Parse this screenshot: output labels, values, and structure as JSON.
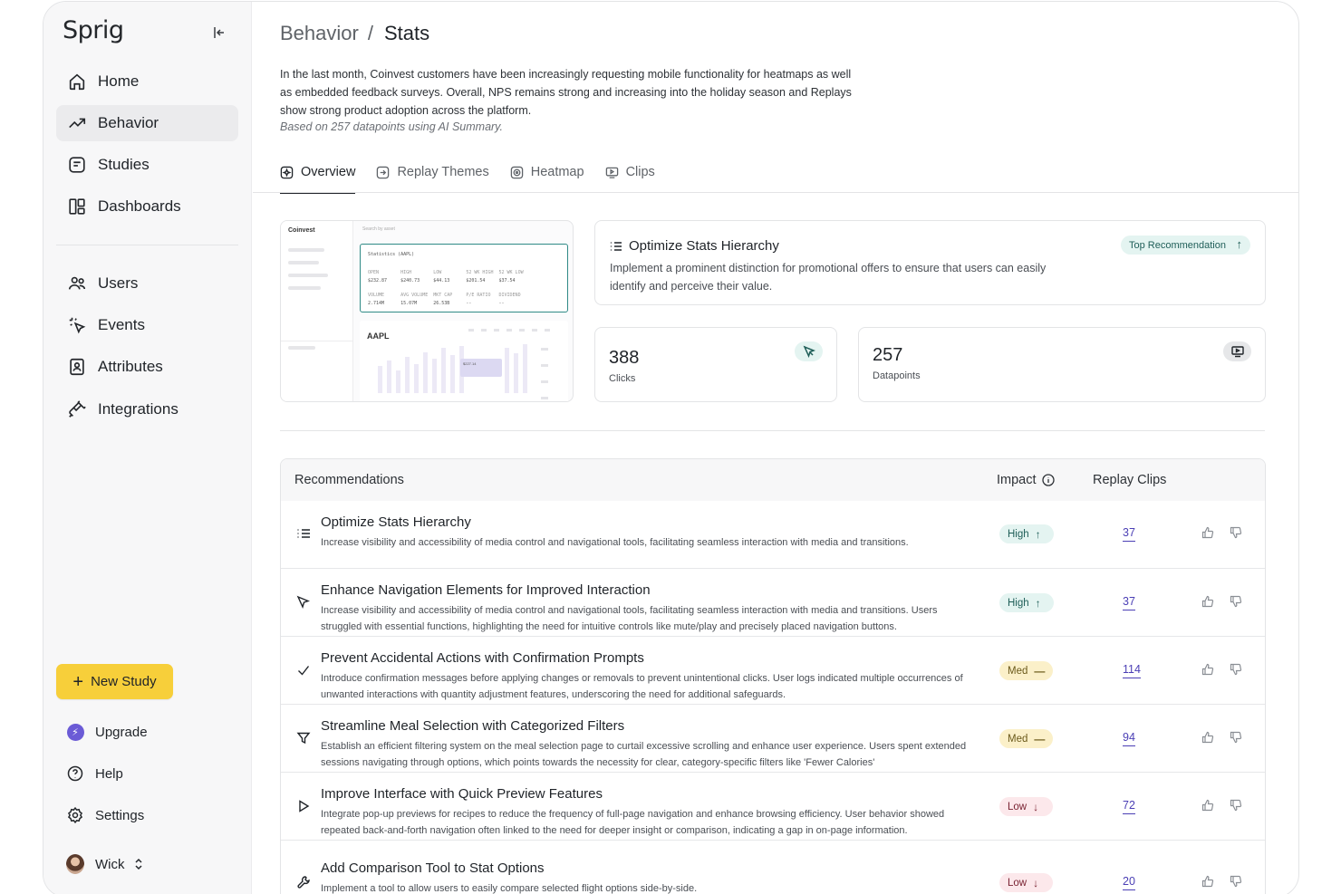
{
  "sidebar": {
    "logo": "Sprig",
    "nav": [
      {
        "label": "Home",
        "icon": "home-icon"
      },
      {
        "label": "Behavior",
        "icon": "trend-up-icon",
        "active": true
      },
      {
        "label": "Studies",
        "icon": "studies-icon"
      },
      {
        "label": "Dashboards",
        "icon": "dashboard-icon"
      }
    ],
    "nav2": [
      {
        "label": "Users",
        "icon": "users-icon"
      },
      {
        "label": "Events",
        "icon": "events-icon"
      },
      {
        "label": "Attributes",
        "icon": "attributes-icon"
      },
      {
        "label": "Integrations",
        "icon": "plug-icon"
      }
    ],
    "new_study": "New Study",
    "upgrade": "Upgrade",
    "help": "Help",
    "settings": "Settings",
    "user": "Wick"
  },
  "header": {
    "crumb_parent": "Behavior",
    "crumb_current": "Stats",
    "summary": "In the last month, Coinvest customers have been increasingly requesting mobile functionality for heatmaps as well as embedded feedback surveys. Overall, NPS remains strong and increasing into the holiday season and Replays show strong product adoption across the platform.",
    "summary_note": "Based on 257 datapoints using AI Summary."
  },
  "tabs": [
    {
      "label": "Overview",
      "active": true
    },
    {
      "label": "Replay Themes"
    },
    {
      "label": "Heatmap"
    },
    {
      "label": "Clips"
    }
  ],
  "preview": {
    "brand": "Coinvest",
    "search": "Search by asset",
    "card_title": "Statistics (AAPL)",
    "row1": "OPEN        HIGH        LOW         52 WK HIGH  52 WK LOW",
    "row2": "$232.87     $240.73     $44.13      $201.54     $37.54",
    "row3": "VOLUME      AVG VOLUME  MKT CAP     P/E RATIO   DIVIDEND",
    "row4": "2.714M      15.07M      26.53B      --          --",
    "chart_title": "AAPL",
    "tip": "$227.14"
  },
  "top_rec": {
    "title": "Optimize Stats Hierarchy",
    "badge": "Top Recommendation",
    "desc": "Implement a prominent distinction for promotional offers to ensure that users can easily identify and perceive their value."
  },
  "stats": [
    {
      "value": "388",
      "label": "Clicks"
    },
    {
      "value": "257",
      "label": "Datapoints"
    }
  ],
  "table": {
    "col_rec": "Recommendations",
    "col_impact": "Impact",
    "col_clips": "Replay Clips",
    "rows": [
      {
        "title": "Optimize Stats Hierarchy",
        "desc": "Increase visibility and accessibility of media control and navigational tools, facilitating seamless interaction with media and transitions.",
        "impact": "High",
        "clips": "37",
        "icon": "list-icon"
      },
      {
        "title": "Enhance Navigation Elements for Improved Interaction",
        "desc": "Increase visibility and accessibility of media control and navigational tools, facilitating seamless interaction with media and transitions. Users struggled with essential functions, highlighting the need for intuitive controls like mute/play and precisely placed navigation buttons.",
        "impact": "High",
        "clips": "37",
        "icon": "cursor-icon"
      },
      {
        "title": "Prevent Accidental Actions with Confirmation Prompts",
        "desc": "Introduce confirmation messages before applying changes or removals to prevent unintentional clicks. User logs indicated multiple occurrences of unwanted interactions with quantity adjustment features, underscoring the need for additional safeguards.",
        "impact": "Med",
        "clips": "114",
        "icon": "check-icon"
      },
      {
        "title": "Streamline Meal Selection with Categorized Filters",
        "desc": "Establish an efficient filtering system on the meal selection page to curtail excessive scrolling and enhance user experience. Users spent extended sessions navigating through options, which points towards the necessity for clear, category-specific filters like 'Fewer Calories'",
        "impact": "Med",
        "clips": "94",
        "icon": "filter-icon"
      },
      {
        "title": "Improve Interface with Quick Preview Features",
        "desc": "Integrate pop-up previews for recipes to reduce the frequency of full-page navigation and enhance browsing efficiency. User behavior showed repeated back-and-forth navigation often linked to the need for deeper insight or comparison, indicating a gap in on-page information.",
        "impact": "Low",
        "clips": "72",
        "icon": "play-icon"
      },
      {
        "title": "Add Comparison Tool to Stat Options",
        "desc": "Implement a tool to allow users to easily compare selected flight options side-by-side.",
        "impact": "Low",
        "clips": "20",
        "icon": "wrench-icon"
      }
    ]
  }
}
